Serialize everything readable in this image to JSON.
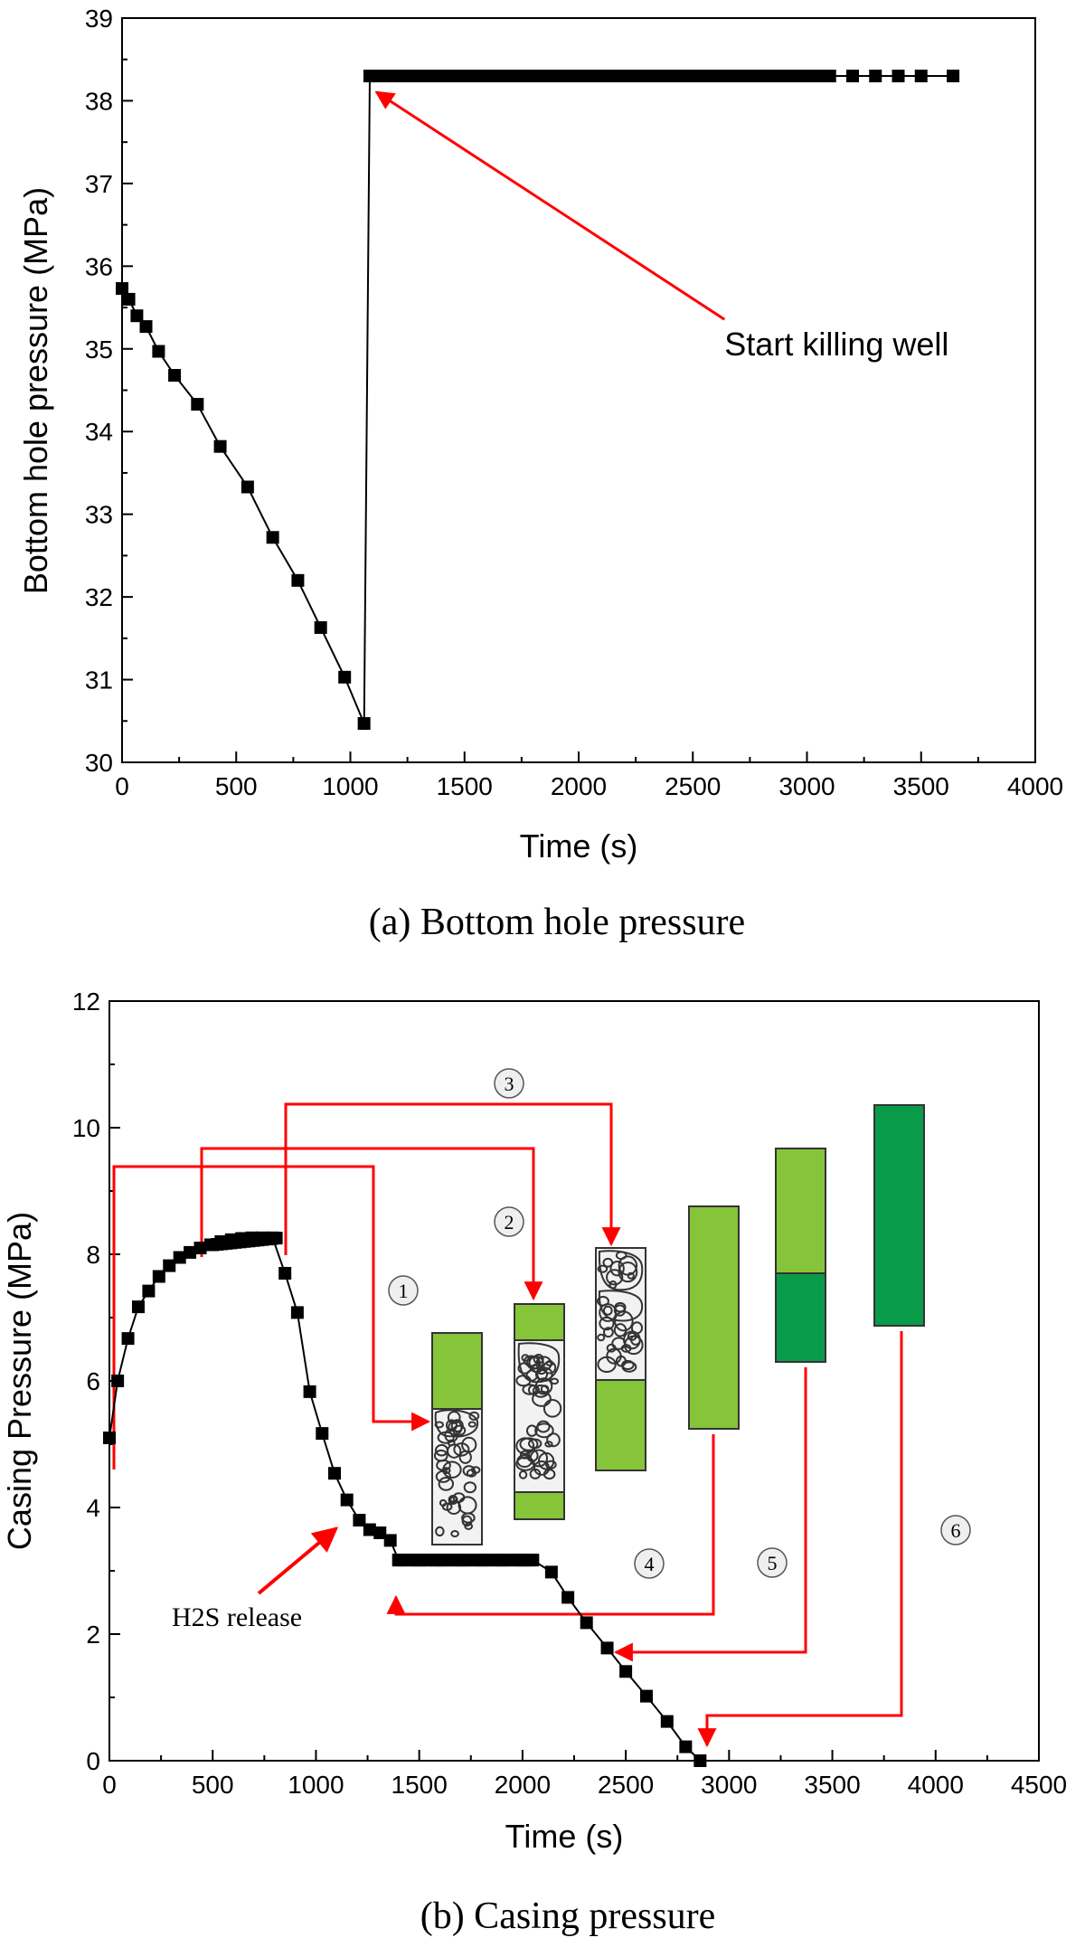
{
  "chart_data": [
    {
      "type": "line",
      "caption": "(a) Bottom hole pressure",
      "xlabel": "Time (s)",
      "ylabel": "Bottom hole pressure (MPa)",
      "xlim": [
        0,
        4000
      ],
      "ylim": [
        30,
        39
      ],
      "xticks": [
        "0",
        "500",
        "1000",
        "1500",
        "2000",
        "2500",
        "3000",
        "3500",
        "4000"
      ],
      "yticks": [
        "30",
        "31",
        "32",
        "33",
        "34",
        "35",
        "36",
        "37",
        "38",
        "39"
      ],
      "marker": "square",
      "grid": false,
      "series": [
        {
          "x": [
            0,
            30,
            65,
            105,
            160,
            230,
            330,
            430,
            550,
            660,
            770,
            870,
            975,
            1060,
            1085,
            1200,
            1400,
            1600,
            1800,
            2000,
            2200,
            2400,
            2600,
            2800,
            3000,
            3100,
            3200,
            3300,
            3400,
            3500,
            3640
          ],
          "y": [
            35.73,
            35.6,
            35.4,
            35.27,
            34.97,
            34.68,
            34.33,
            33.82,
            33.33,
            32.72,
            32.2,
            31.63,
            31.03,
            30.47,
            38.3,
            38.3,
            38.3,
            38.3,
            38.3,
            38.3,
            38.3,
            38.3,
            38.3,
            38.3,
            38.3,
            38.3,
            38.3,
            38.3,
            38.3,
            38.3,
            38.3
          ]
        }
      ],
      "annotations": [
        {
          "text": "Start killing well",
          "x": 2520,
          "y": 35.05,
          "arrow_to": [
            1090,
            38.15
          ]
        }
      ]
    },
    {
      "type": "line",
      "caption": "(b) Casing pressure",
      "xlabel": "Time (s)",
      "ylabel": "Casing Pressure (MPa)",
      "xlim": [
        0,
        4500
      ],
      "ylim": [
        0,
        12
      ],
      "xticks": [
        "0",
        "500",
        "1000",
        "1500",
        "2000",
        "2500",
        "3000",
        "3500",
        "4000",
        "4500"
      ],
      "yticks": [
        "0",
        "2",
        "4",
        "6",
        "8",
        "10",
        "12"
      ],
      "marker": "square",
      "grid": false,
      "series": [
        {
          "x": [
            0,
            40,
            90,
            140,
            190,
            240,
            290,
            340,
            390,
            440,
            490,
            540,
            590,
            640,
            690,
            740,
            790,
            850,
            910,
            970,
            1030,
            1090,
            1150,
            1210,
            1260,
            1310,
            1360,
            1400,
            1500,
            1600,
            1700,
            1800,
            1900,
            2000,
            2050,
            2140,
            2220,
            2310,
            2410,
            2500,
            2600,
            2700,
            2790,
            2860
          ],
          "y": [
            5.1,
            6.0,
            6.67,
            7.17,
            7.42,
            7.65,
            7.82,
            7.95,
            8.03,
            8.1,
            8.15,
            8.2,
            8.23,
            8.25,
            8.26,
            8.26,
            8.26,
            7.7,
            7.08,
            5.83,
            5.17,
            4.54,
            4.12,
            3.8,
            3.65,
            3.6,
            3.48,
            3.17,
            3.17,
            3.17,
            3.17,
            3.17,
            3.17,
            3.17,
            3.17,
            2.98,
            2.58,
            2.18,
            1.78,
            1.41,
            1.02,
            0.62,
            0.22,
            0.0
          ]
        }
      ],
      "annotations": [
        {
          "text": "H2S release",
          "x": 320,
          "y": 2.2,
          "arrow_to": [
            1080,
            3.8
          ]
        }
      ],
      "stage_labels": [
        "1",
        "2",
        "3",
        "4",
        "5",
        "6"
      ]
    }
  ],
  "colors": {
    "series": "#000000",
    "annotation_arrow": "#ff0000",
    "liquid_light_green": "#86c43a",
    "liquid_dark_green": "#0a9b4a",
    "gas_bubble_fill": "#f2f2f2"
  }
}
